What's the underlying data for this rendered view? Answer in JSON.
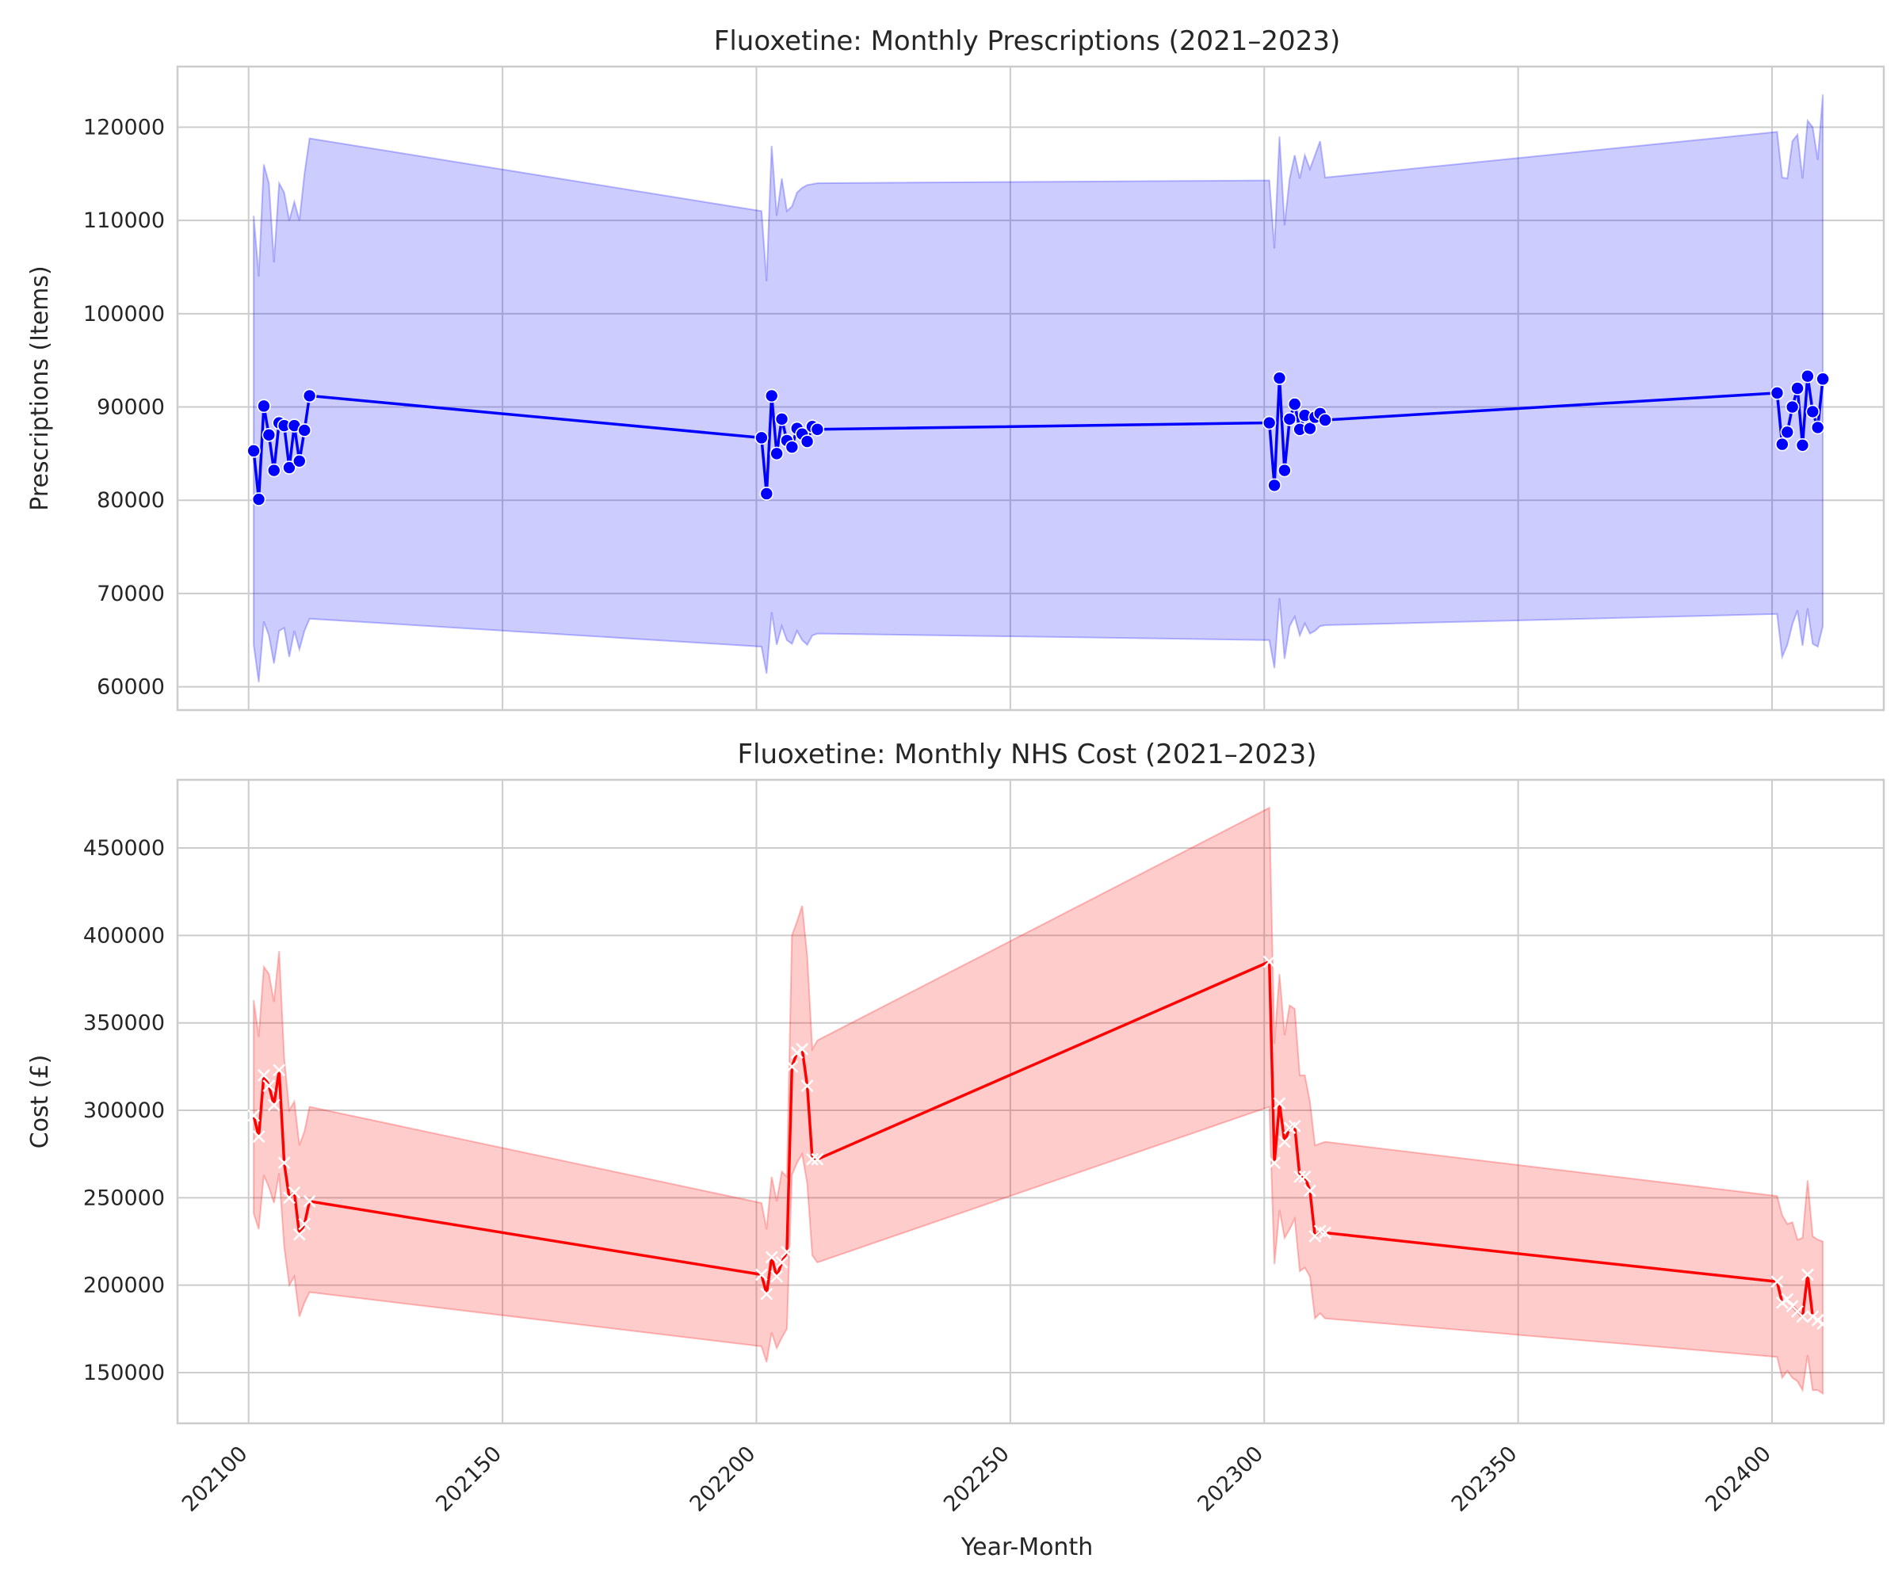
{
  "chart_data": [
    {
      "type": "line",
      "title": "Fluoxetine: Monthly Prescriptions (2021–2023)",
      "xlabel": "",
      "ylabel": "Prescriptions (Items)",
      "xlim": [
        202086,
        202422
      ],
      "ylim": [
        57500,
        126500
      ],
      "xticks": [
        202100,
        202150,
        202200,
        202250,
        202300,
        202350,
        202400
      ],
      "yticks": [
        60000,
        70000,
        80000,
        90000,
        100000,
        110000,
        120000
      ],
      "grid": true,
      "line_color": "#0000ff",
      "band_color": "#0000ff",
      "marker": "circle",
      "x": [
        202101,
        202102,
        202103,
        202104,
        202105,
        202106,
        202107,
        202108,
        202109,
        202110,
        202111,
        202112,
        202201,
        202202,
        202203,
        202204,
        202205,
        202206,
        202207,
        202208,
        202209,
        202210,
        202211,
        202212,
        202301,
        202302,
        202303,
        202304,
        202305,
        202306,
        202307,
        202308,
        202309,
        202310,
        202311,
        202312,
        202401,
        202402,
        202403,
        202404,
        202405,
        202406,
        202407,
        202408,
        202409,
        202410
      ],
      "y": [
        85300,
        80100,
        90100,
        87000,
        83200,
        88300,
        88000,
        83500,
        88000,
        84200,
        87500,
        91200,
        86700,
        80700,
        91200,
        85000,
        88700,
        86400,
        85700,
        87700,
        87100,
        86300,
        87900,
        87600,
        88300,
        81600,
        93100,
        83200,
        88700,
        90300,
        87600,
        89100,
        87700,
        88900,
        89300,
        88600,
        91500,
        86000,
        87300,
        90000,
        92000,
        85900,
        93300,
        89500,
        87800,
        93000
      ],
      "band_upper": [
        110500,
        104000,
        116000,
        114000,
        105500,
        114000,
        113000,
        110000,
        112000,
        110000,
        115000,
        118800,
        111000,
        103500,
        118000,
        110500,
        114500,
        111000,
        111500,
        113000,
        113500,
        113800,
        113900,
        114000,
        114300,
        107000,
        119000,
        109500,
        114500,
        117000,
        114500,
        117000,
        115500,
        117000,
        118500,
        114600,
        119500,
        114600,
        114500,
        118500,
        119200,
        114500,
        120700,
        120000,
        116500,
        123500
      ],
      "band_lower": [
        64500,
        60500,
        67000,
        65500,
        62500,
        66000,
        66300,
        63200,
        66000,
        64000,
        66000,
        67300,
        64300,
        61400,
        68000,
        64500,
        66500,
        65000,
        64600,
        66000,
        65000,
        64500,
        65500,
        65700,
        65000,
        62000,
        69500,
        63000,
        66500,
        67500,
        65500,
        66800,
        65700,
        66000,
        66500,
        66600,
        67800,
        63200,
        64500,
        66700,
        68200,
        64400,
        68400,
        64600,
        64300,
        66500
      ]
    },
    {
      "type": "line",
      "title": "Fluoxetine: Monthly NHS Cost (2021–2023)",
      "xlabel": "Year-Month",
      "ylabel": "Cost (£)",
      "xlim": [
        202086,
        202422
      ],
      "ylim": [
        121000,
        489000
      ],
      "xticks": [
        202100,
        202150,
        202200,
        202250,
        202300,
        202350,
        202400
      ],
      "yticks": [
        150000,
        200000,
        250000,
        300000,
        350000,
        400000,
        450000
      ],
      "grid": true,
      "line_color": "#ff0000",
      "band_color": "#ff0000",
      "marker": "x",
      "x": [
        202101,
        202102,
        202103,
        202104,
        202105,
        202106,
        202107,
        202108,
        202109,
        202110,
        202111,
        202112,
        202201,
        202202,
        202203,
        202204,
        202205,
        202206,
        202207,
        202208,
        202209,
        202210,
        202211,
        202212,
        202301,
        202302,
        202303,
        202304,
        202305,
        202306,
        202307,
        202308,
        202309,
        202310,
        202311,
        202312,
        202401,
        202402,
        202403,
        202404,
        202405,
        202406,
        202407,
        202408,
        202409,
        202410
      ],
      "y": [
        297000,
        285000,
        320000,
        314000,
        303000,
        323000,
        270000,
        250000,
        253000,
        229000,
        235000,
        248000,
        206000,
        195000,
        216000,
        205000,
        213000,
        219000,
        325000,
        333000,
        335000,
        314000,
        272000,
        272000,
        385000,
        270000,
        304000,
        282000,
        290000,
        291000,
        262000,
        262000,
        254000,
        228000,
        231000,
        230000,
        202000,
        190000,
        192000,
        188000,
        185000,
        182000,
        206000,
        182000,
        180000,
        178000
      ],
      "band_upper": [
        363000,
        342000,
        382000,
        378000,
        362000,
        391000,
        330000,
        300000,
        305000,
        280000,
        288000,
        302000,
        247000,
        232000,
        262000,
        248000,
        265000,
        262000,
        400000,
        408000,
        417000,
        388000,
        335000,
        340000,
        473000,
        338000,
        378000,
        343000,
        360000,
        358000,
        320000,
        320000,
        305000,
        280000,
        281000,
        282000,
        251000,
        240000,
        235000,
        236000,
        226000,
        227000,
        260000,
        228000,
        226000,
        225000
      ],
      "band_lower": [
        241000,
        232000,
        263000,
        256000,
        247000,
        264000,
        222000,
        200000,
        205000,
        182000,
        190000,
        196000,
        165000,
        156000,
        173000,
        164000,
        170000,
        175000,
        263000,
        270000,
        275000,
        258000,
        217000,
        213000,
        302000,
        212000,
        243000,
        227000,
        232000,
        238000,
        208000,
        210000,
        205000,
        181000,
        184000,
        181000,
        159000,
        147000,
        151000,
        147000,
        145000,
        140000,
        160000,
        140000,
        140000,
        138000
      ]
    }
  ]
}
